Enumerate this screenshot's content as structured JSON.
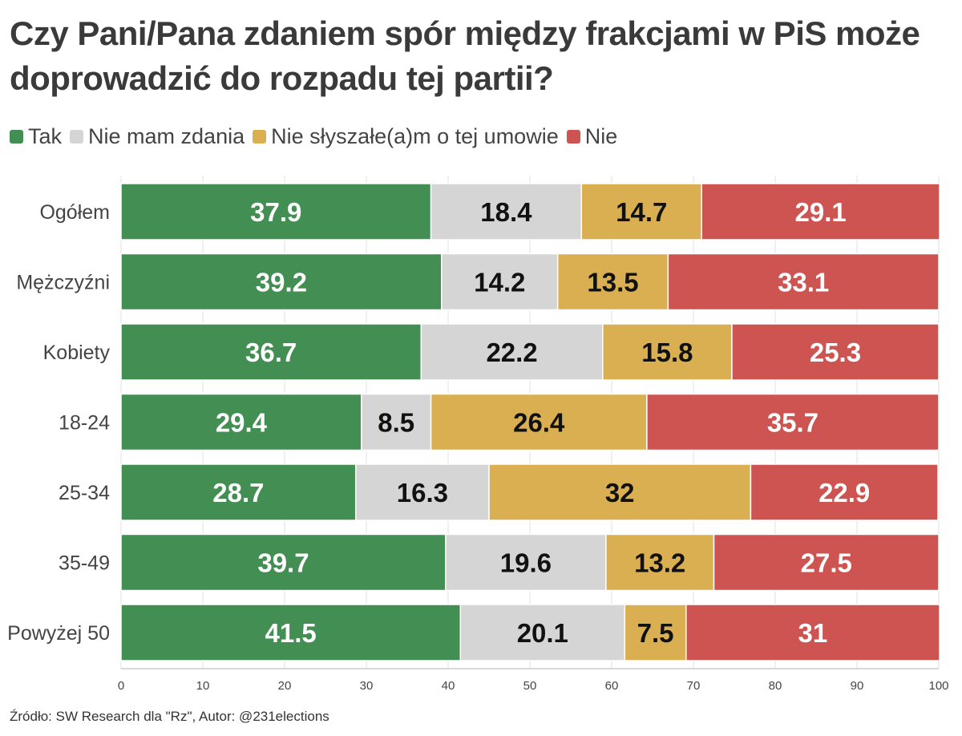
{
  "title": "Czy Pani/Pana zdaniem spór między frakcjami w PiS może doprowadzić do rozpadu tej partii?",
  "source": "Źródło: SW Research dla \"Rz\", Autor: @231elections",
  "legend": [
    {
      "label": "Tak",
      "color": "#438e52"
    },
    {
      "label": "Nie mam zdania",
      "color": "#d5d5d5"
    },
    {
      "label": "Nie słyszałe(a)m o tej umowie",
      "color": "#d9af51"
    },
    {
      "label": "Nie",
      "color": "#cd5450"
    }
  ],
  "chart_data": {
    "type": "bar",
    "orientation": "horizontal",
    "stacked": true,
    "title": "Czy Pani/Pana zdaniem spór między frakcjami w PiS może doprowadzić do rozpadu tej partii?",
    "xlabel": "",
    "ylabel": "",
    "xlim": [
      0,
      100
    ],
    "x_ticks": [
      "0",
      "10",
      "20",
      "30",
      "40",
      "50",
      "60",
      "70",
      "80",
      "90",
      "100"
    ],
    "grid": "vertical",
    "legend_position": "top-left",
    "categories": [
      "Ogółem",
      "Mężczyźni",
      "Kobiety",
      "18-24",
      "25-34",
      "35-49",
      "Powyżej 50"
    ],
    "series": [
      {
        "name": "Tak",
        "color": "#438e52",
        "label_color": "#ffffff",
        "values": [
          37.9,
          39.2,
          36.7,
          29.4,
          28.7,
          39.7,
          41.5
        ]
      },
      {
        "name": "Nie mam zdania",
        "color": "#d5d5d5",
        "label_color": "#111111",
        "values": [
          18.4,
          14.2,
          22.2,
          8.5,
          16.3,
          19.6,
          20.1
        ]
      },
      {
        "name": "Nie słyszałe(a)m o tej umowie",
        "color": "#d9af51",
        "label_color": "#111111",
        "values": [
          14.7,
          13.5,
          15.8,
          26.4,
          32,
          13.2,
          7.5
        ]
      },
      {
        "name": "Nie",
        "color": "#cd5450",
        "label_color": "#ffffff",
        "values": [
          29.1,
          33.1,
          25.3,
          35.7,
          22.9,
          27.5,
          31
        ]
      }
    ]
  }
}
